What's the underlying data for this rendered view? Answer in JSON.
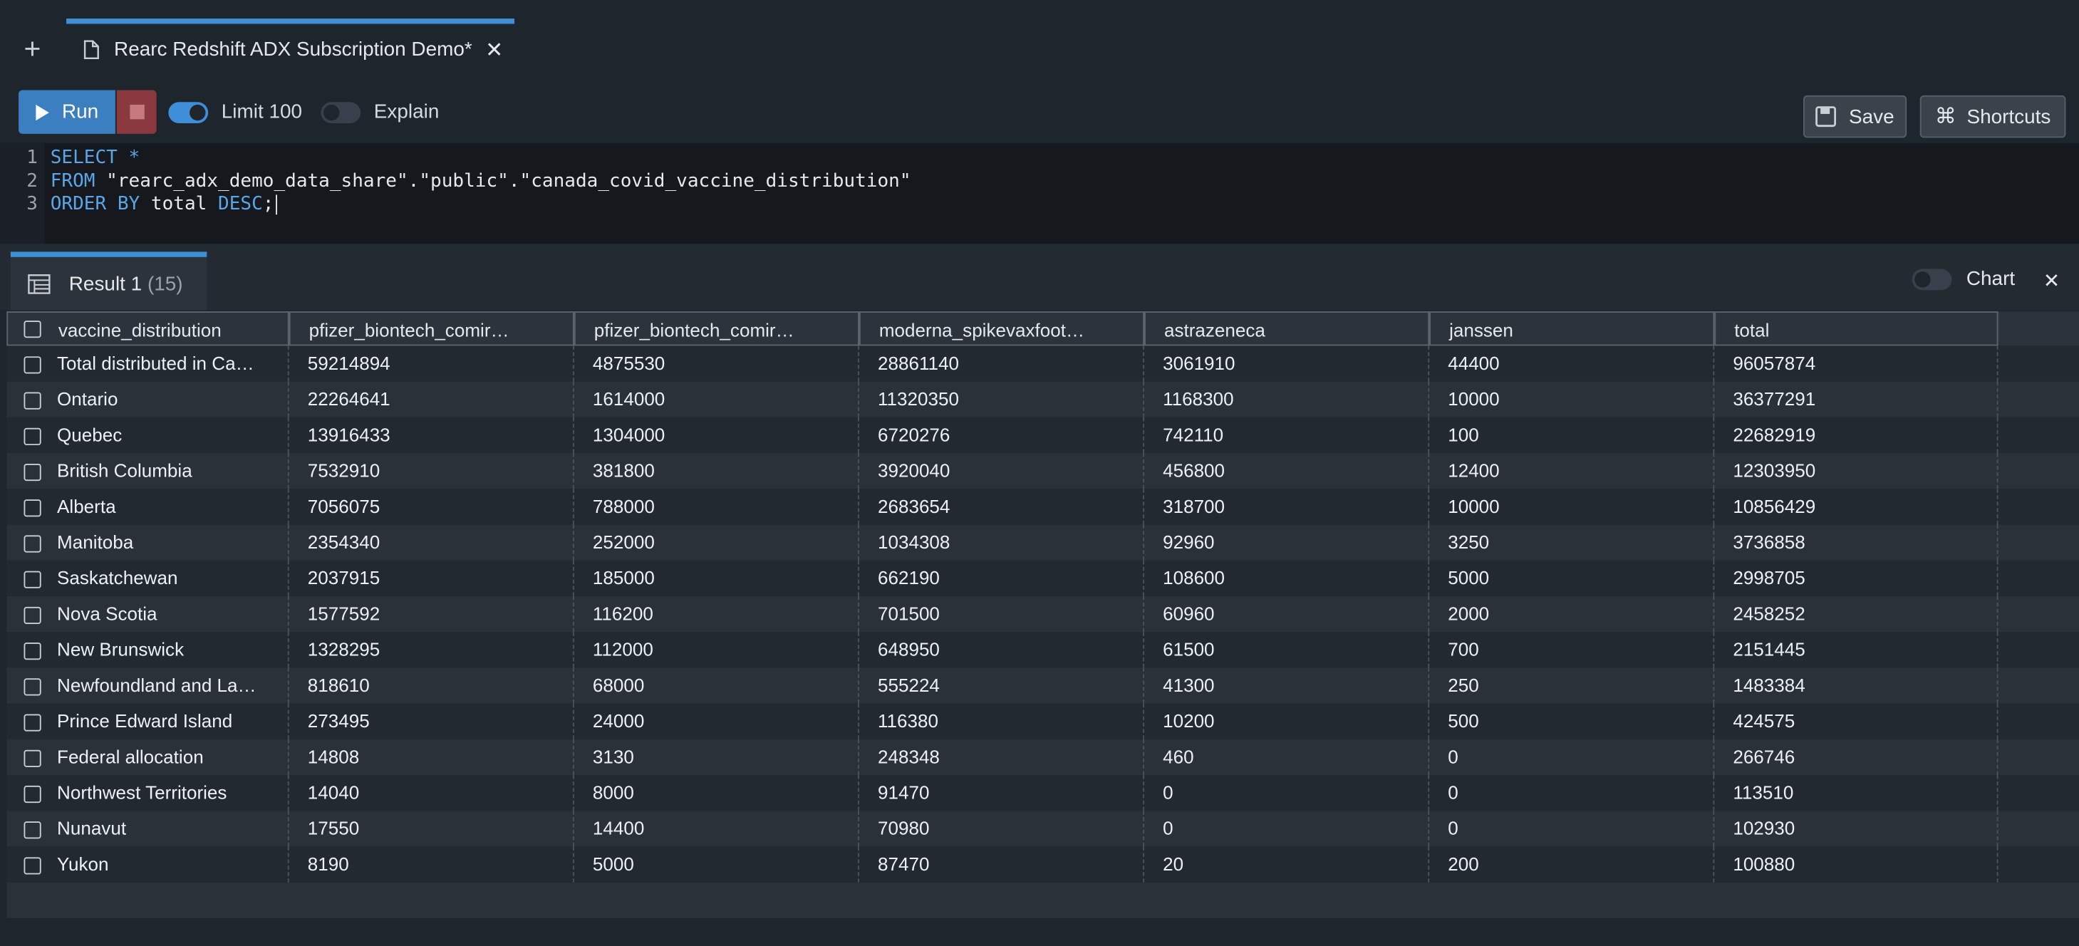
{
  "tab": {
    "title": "Rearc Redshift ADX Subscription Demo*"
  },
  "toolbar": {
    "run": "Run",
    "limit": "Limit 100",
    "explain": "Explain",
    "save": "Save",
    "shortcuts": "Shortcuts"
  },
  "editor": {
    "lines": [
      {
        "number": "1",
        "tokens": [
          {
            "text": "SELECT",
            "kind": "keyword"
          },
          {
            "text": " ",
            "kind": "plain"
          },
          {
            "text": "*",
            "kind": "keyword"
          }
        ]
      },
      {
        "number": "2",
        "tokens": [
          {
            "text": "FROM",
            "kind": "keyword"
          },
          {
            "text": " \"rearc_adx_demo_data_share\".\"public\".\"canada_covid_vaccine_distribution\"",
            "kind": "plain"
          }
        ]
      },
      {
        "number": "3",
        "tokens": [
          {
            "text": "ORDER BY",
            "kind": "keyword"
          },
          {
            "text": " total ",
            "kind": "plain"
          },
          {
            "text": "DESC",
            "kind": "keyword"
          },
          {
            "text": ";",
            "kind": "plain"
          }
        ]
      }
    ]
  },
  "results": {
    "tab_label": "Result 1",
    "count": "(15)",
    "chart": "Chart",
    "table": {
      "columns": [
        "vaccine_distribution",
        "pfizer_biontech_comir…",
        "pfizer_biontech_comir…",
        "moderna_spikevaxfoot…",
        "astrazeneca",
        "janssen",
        "total"
      ],
      "rows": [
        [
          "Total distributed in Ca…",
          59214894,
          4875530,
          28861140,
          3061910,
          44400,
          96057874
        ],
        [
          "Ontario",
          22264641,
          1614000,
          11320350,
          1168300,
          10000,
          36377291
        ],
        [
          "Quebec",
          13916433,
          1304000,
          6720276,
          742110,
          100,
          22682919
        ],
        [
          "British Columbia",
          7532910,
          381800,
          3920040,
          456800,
          12400,
          12303950
        ],
        [
          "Alberta",
          7056075,
          788000,
          2683654,
          318700,
          10000,
          10856429
        ],
        [
          "Manitoba",
          2354340,
          252000,
          1034308,
          92960,
          3250,
          3736858
        ],
        [
          "Saskatchewan",
          2037915,
          185000,
          662190,
          108600,
          5000,
          2998705
        ],
        [
          "Nova Scotia",
          1577592,
          116200,
          701500,
          60960,
          2000,
          2458252
        ],
        [
          "New Brunswick",
          1328295,
          112000,
          648950,
          61500,
          700,
          2151445
        ],
        [
          "Newfoundland and La…",
          818610,
          68000,
          555224,
          41300,
          250,
          1483384
        ],
        [
          "Prince Edward Island",
          273495,
          24000,
          116380,
          10200,
          500,
          424575
        ],
        [
          "Federal allocation",
          14808,
          3130,
          248348,
          460,
          0,
          266746
        ],
        [
          "Northwest Territories",
          14040,
          8000,
          91470,
          0,
          0,
          113510
        ],
        [
          "Nunavut",
          17550,
          14400,
          70980,
          0,
          0,
          102930
        ],
        [
          "Yukon",
          8190,
          5000,
          87470,
          20,
          200,
          100880
        ]
      ]
    }
  }
}
